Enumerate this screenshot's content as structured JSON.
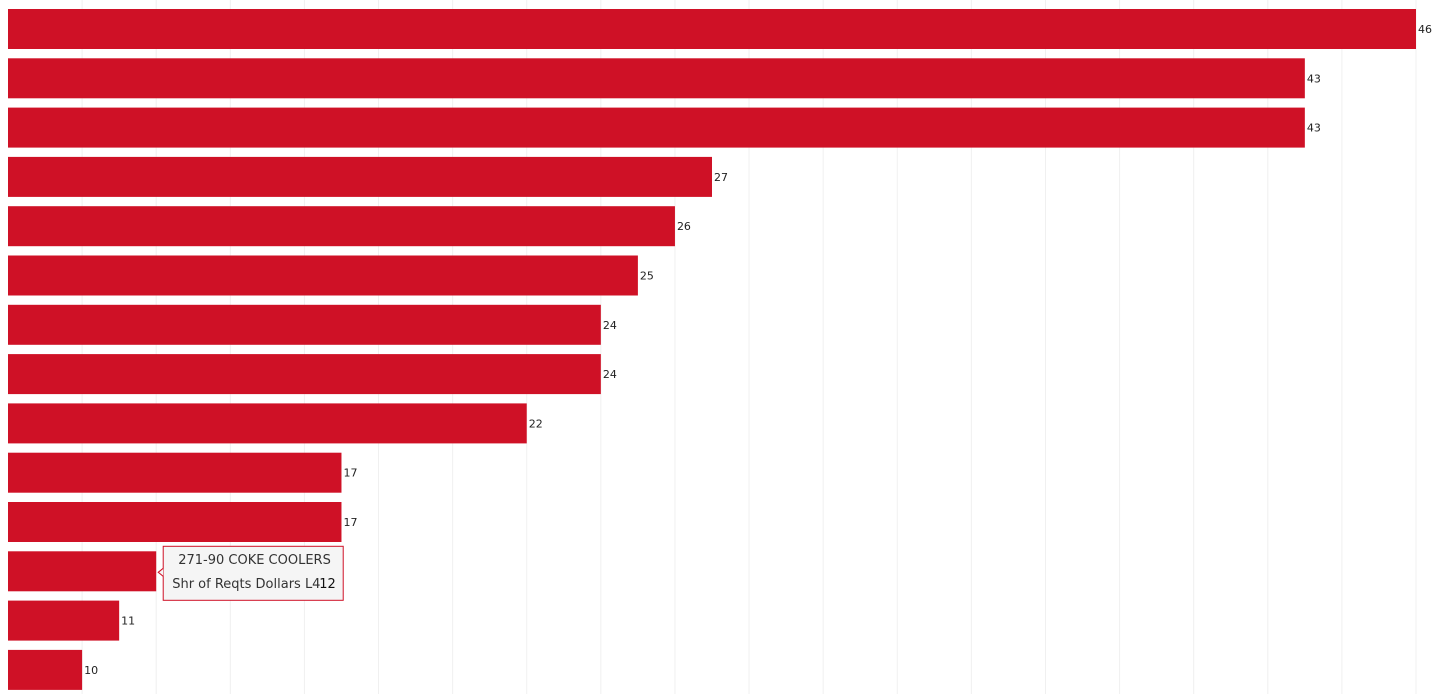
{
  "chart_data": {
    "type": "bar",
    "orientation": "horizontal",
    "categories": [
      null,
      null,
      null,
      null,
      null,
      null,
      null,
      null,
      null,
      null,
      null,
      "271-90 COKE COOLERS",
      null,
      null
    ],
    "measure": "Shr of Reqts Dollars L4",
    "values": [
      46,
      43,
      43,
      27,
      26,
      25,
      24,
      24,
      22,
      17,
      17,
      12,
      11,
      10
    ],
    "color": "#cf1126",
    "xlim": [
      8,
      46
    ],
    "xticks": [
      10,
      12,
      14,
      16,
      18,
      20,
      22,
      24,
      26,
      28,
      30,
      32,
      34,
      36,
      38,
      40,
      42,
      44,
      46
    ],
    "grid": true,
    "tooltip_index": 11
  }
}
